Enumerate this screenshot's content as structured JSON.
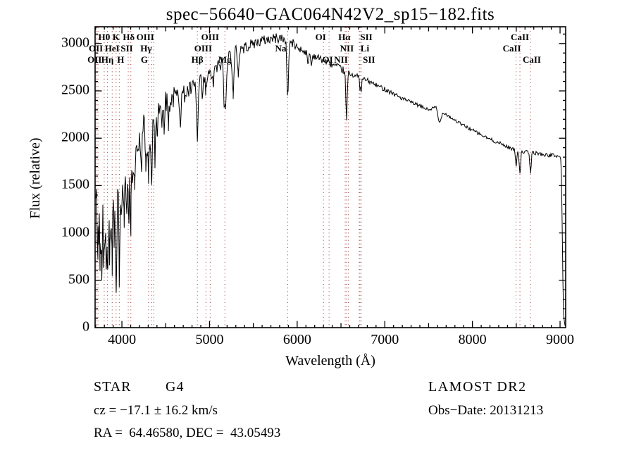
{
  "title": "spec−56640−GAC064N42V2_sp15−182.fits",
  "axes": {
    "xlabel": "Wavelength (Å)",
    "ylabel": "Flux (relative)",
    "x_ticks": [
      4000,
      5000,
      6000,
      7000,
      8000,
      9000
    ],
    "y_ticks": [
      0,
      500,
      1000,
      1500,
      2000,
      2500,
      3000
    ]
  },
  "footer": {
    "object_class": "STAR",
    "subclass": "G4",
    "survey": "LAMOST DR2",
    "cz_line": "cz = −17.1 ± 16.2 km/s",
    "obs_date_line": "Obs−Date: 20131213",
    "radec_line": "RA =  64.46580, DEC =  43.05493"
  },
  "line_marker_color": "#9e2b2b",
  "spectral_lines": [
    {
      "label": "OII",
      "wavelength": 3712,
      "row": 3,
      "dx": -3
    },
    {
      "label": "OII",
      "wavelength": 3727,
      "row": 2,
      "dx": -3
    },
    {
      "label": "Hθ",
      "wavelength": 3798,
      "row": 1,
      "dx": 0
    },
    {
      "label": "Hη",
      "wavelength": 3835,
      "row": 3,
      "dx": 0
    },
    {
      "label": "HeI",
      "wavelength": 3889,
      "row": 2,
      "dx": 0
    },
    {
      "label": "K",
      "wavelength": 3934,
      "row": 1,
      "dx": 0
    },
    {
      "label": "H",
      "wavelength": 3970,
      "row": 3,
      "dx": 2
    },
    {
      "label": "SII",
      "wavelength": 4072,
      "row": 2,
      "dx": -2
    },
    {
      "label": "Hδ",
      "wavelength": 4102,
      "row": 1,
      "dx": -3
    },
    {
      "label": "G",
      "wavelength": 4304,
      "row": 3,
      "dx": -6
    },
    {
      "label": "Hγ",
      "wavelength": 4340,
      "row": 2,
      "dx": -8
    },
    {
      "label": "OIII",
      "wavelength": 4363,
      "row": 1,
      "dx": -12
    },
    {
      "label": "Hβ",
      "wavelength": 4861,
      "row": 3,
      "dx": 0
    },
    {
      "label": "OIII",
      "wavelength": 4959,
      "row": 2,
      "dx": -4
    },
    {
      "label": "OIII",
      "wavelength": 5007,
      "row": 1,
      "dx": 0
    },
    {
      "label": "Mg",
      "wavelength": 5175,
      "row": 3,
      "dx": 0
    },
    {
      "label": "Na",
      "wavelength": 5892,
      "row": 2,
      "dx": -10
    },
    {
      "label": "OI",
      "wavelength": 6300,
      "row": 1,
      "dx": -4
    },
    {
      "label": "OI",
      "wavelength": 6364,
      "row": 3,
      "dx": -2
    },
    {
      "label": "NII",
      "wavelength": 6548,
      "row": 3,
      "dx": -6
    },
    {
      "label": "Hα",
      "wavelength": 6563,
      "row": 1,
      "dx": -3
    },
    {
      "label": "NII",
      "wavelength": 6583,
      "row": 2,
      "dx": -2
    },
    {
      "label": "Li",
      "wavelength": 6708,
      "row": 2,
      "dx": 8
    },
    {
      "label": "SII",
      "wavelength": 6717,
      "row": 1,
      "dx": 9
    },
    {
      "label": "SII",
      "wavelength": 6731,
      "row": 3,
      "dx": 11
    },
    {
      "label": "CaII",
      "wavelength": 8498,
      "row": 2,
      "dx": -6
    },
    {
      "label": "CaII",
      "wavelength": 8542,
      "row": 1,
      "dx": 0
    },
    {
      "label": "CaII",
      "wavelength": 8662,
      "row": 3,
      "dx": 2
    }
  ],
  "chart_data": {
    "type": "line",
    "title": "spec−56640−GAC064N42V2_sp15−182.fits",
    "xlabel": "Wavelength (Å)",
    "ylabel": "Flux (relative)",
    "x_range": [
      3694,
      9064
    ],
    "y_range": [
      0,
      3177
    ],
    "grid": false,
    "series_color": "#000000",
    "noise_seed": 42,
    "continuum_anchors": [
      [
        3694,
        1350
      ],
      [
        3720,
        1200
      ],
      [
        3750,
        1200
      ],
      [
        3780,
        1150
      ],
      [
        3820,
        1120
      ],
      [
        3850,
        1180
      ],
      [
        3880,
        1250
      ],
      [
        3905,
        1350
      ],
      [
        3925,
        1300
      ],
      [
        3945,
        1350
      ],
      [
        3960,
        1420
      ],
      [
        3985,
        1400
      ],
      [
        4010,
        1430
      ],
      [
        4040,
        1480
      ],
      [
        4080,
        1580
      ],
      [
        4120,
        1700
      ],
      [
        4160,
        1870
      ],
      [
        4210,
        2020
      ],
      [
        4260,
        2170
      ],
      [
        4310,
        2250
      ],
      [
        4360,
        2300
      ],
      [
        4420,
        2330
      ],
      [
        4500,
        2390
      ],
      [
        4600,
        2430
      ],
      [
        4700,
        2460
      ],
      [
        4800,
        2520
      ],
      [
        4900,
        2580
      ],
      [
        5000,
        2660
      ],
      [
        5100,
        2760
      ],
      [
        5200,
        2850
      ],
      [
        5300,
        2920
      ],
      [
        5400,
        2960
      ],
      [
        5500,
        3000
      ],
      [
        5600,
        3030
      ],
      [
        5700,
        3050
      ],
      [
        5800,
        3060
      ],
      [
        5900,
        3030
      ],
      [
        6000,
        2960
      ],
      [
        6100,
        2910
      ],
      [
        6200,
        2870
      ],
      [
        6300,
        2820
      ],
      [
        6400,
        2780
      ],
      [
        6500,
        2730
      ],
      [
        6600,
        2680
      ],
      [
        6700,
        2650
      ],
      [
        6800,
        2610
      ],
      [
        6900,
        2560
      ],
      [
        7000,
        2520
      ],
      [
        7100,
        2470
      ],
      [
        7200,
        2420
      ],
      [
        7300,
        2380
      ],
      [
        7400,
        2340
      ],
      [
        7500,
        2300
      ],
      [
        7590,
        2330
      ],
      [
        7630,
        2250
      ],
      [
        7680,
        2270
      ],
      [
        7750,
        2220
      ],
      [
        7850,
        2160
      ],
      [
        7950,
        2110
      ],
      [
        8050,
        2060
      ],
      [
        8150,
        2010
      ],
      [
        8250,
        1970
      ],
      [
        8350,
        1930
      ],
      [
        8450,
        1890
      ],
      [
        8550,
        1860
      ],
      [
        8650,
        1850
      ],
      [
        8750,
        1840
      ],
      [
        8850,
        1820
      ],
      [
        8950,
        1820
      ],
      [
        9000,
        1800
      ],
      [
        9012,
        1780
      ],
      [
        9022,
        1250
      ],
      [
        9030,
        600
      ],
      [
        9040,
        150
      ],
      [
        9052,
        30
      ],
      [
        9064,
        25
      ]
    ],
    "absorption_features": [
      [
        3727,
        350,
        6
      ],
      [
        3750,
        420,
        5
      ],
      [
        3770,
        380,
        4
      ],
      [
        3798,
        500,
        6
      ],
      [
        3820,
        350,
        4
      ],
      [
        3835,
        520,
        6
      ],
      [
        3860,
        350,
        4
      ],
      [
        3889,
        520,
        6
      ],
      [
        3910,
        300,
        4
      ],
      [
        3934,
        870,
        7
      ],
      [
        3970,
        650,
        7
      ],
      [
        4026,
        280,
        5
      ],
      [
        4072,
        300,
        5
      ],
      [
        4102,
        480,
        8
      ],
      [
        4144,
        280,
        6
      ],
      [
        4226,
        330,
        6
      ],
      [
        4271,
        300,
        7
      ],
      [
        4304,
        520,
        20
      ],
      [
        4340,
        650,
        9
      ],
      [
        4383,
        380,
        7
      ],
      [
        4405,
        250,
        6
      ],
      [
        4457,
        200,
        6
      ],
      [
        4481,
        220,
        6
      ],
      [
        4531,
        230,
        7
      ],
      [
        4668,
        230,
        7
      ],
      [
        4861,
        600,
        8
      ],
      [
        4920,
        180,
        6
      ],
      [
        4957,
        140,
        6
      ],
      [
        5041,
        150,
        6
      ],
      [
        5167,
        420,
        7
      ],
      [
        5183,
        430,
        9
      ],
      [
        5270,
        450,
        9
      ],
      [
        5328,
        250,
        7
      ],
      [
        5892,
        580,
        9
      ],
      [
        6122,
        130,
        7
      ],
      [
        6162,
        120,
        7
      ],
      [
        6563,
        500,
        8
      ],
      [
        6717,
        110,
        6
      ],
      [
        6731,
        130,
        6
      ],
      [
        7620,
        100,
        15
      ],
      [
        8498,
        170,
        7
      ],
      [
        8542,
        230,
        8
      ],
      [
        8662,
        210,
        8
      ]
    ],
    "noise_segments": [
      [
        3694,
        3800,
        300
      ],
      [
        3800,
        3950,
        260
      ],
      [
        3950,
        4150,
        210
      ],
      [
        4150,
        4400,
        170
      ],
      [
        4400,
        4700,
        120
      ],
      [
        4700,
        5000,
        95
      ],
      [
        5000,
        5400,
        75
      ],
      [
        5400,
        6000,
        55
      ],
      [
        6000,
        6600,
        38
      ],
      [
        6600,
        7200,
        26
      ],
      [
        7200,
        8300,
        18
      ],
      [
        8300,
        9000,
        20
      ],
      [
        9000,
        9064,
        12
      ]
    ]
  }
}
